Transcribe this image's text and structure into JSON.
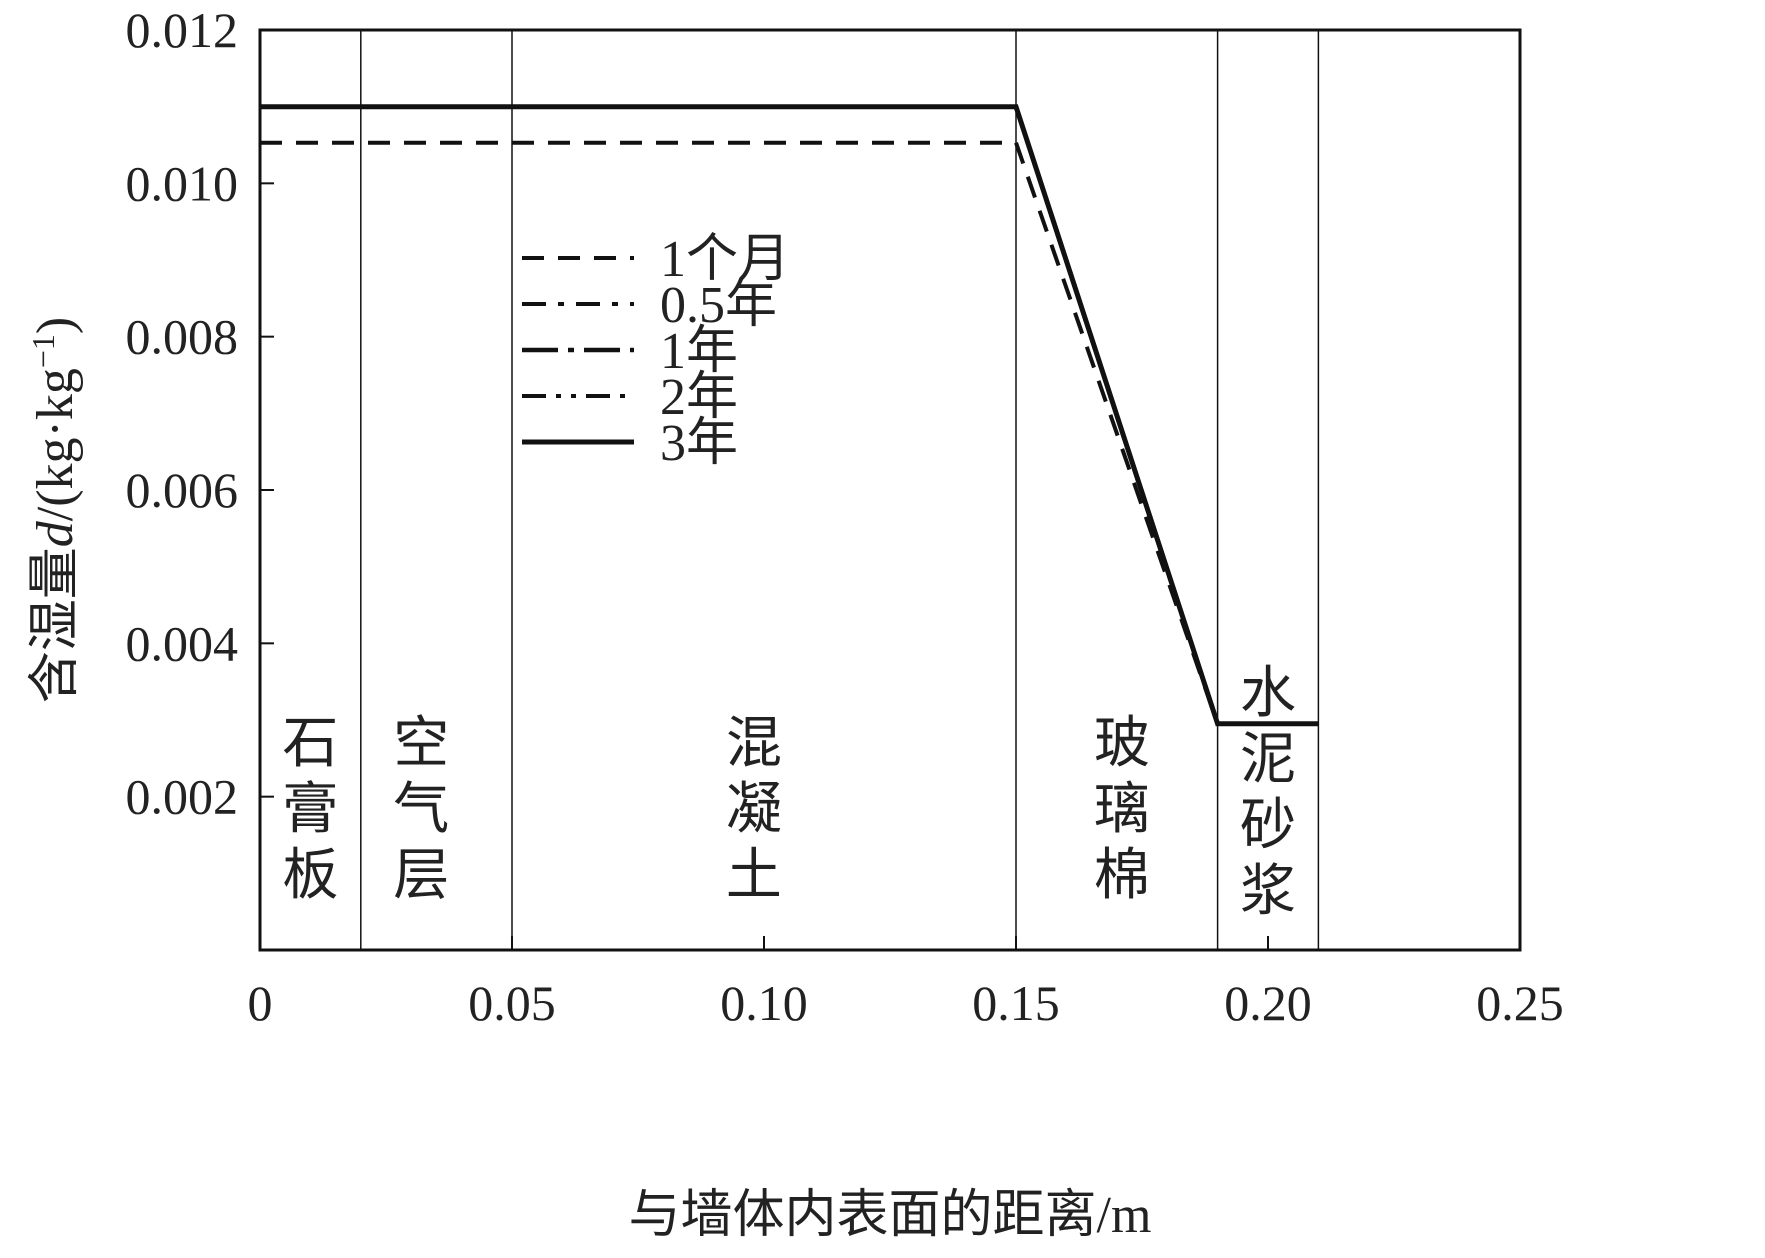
{
  "chart_data": {
    "type": "line",
    "xlabel": "与墙体内表面的距离/m",
    "ylabel_parts": {
      "prefix": "含湿量",
      "var": "d",
      "unit_open": "/(kg·kg",
      "unit_sup": "−1",
      "unit_close": ")"
    },
    "xlim": [
      0,
      0.25
    ],
    "ylim": [
      0,
      0.012
    ],
    "x_ticks": [
      0,
      0.05,
      0.1,
      0.15,
      0.2,
      0.25
    ],
    "x_tick_labels": [
      "0",
      "0.05",
      "0.10",
      "0.15",
      "0.20",
      "0.25"
    ],
    "y_ticks": [
      0.002,
      0.004,
      0.006,
      0.008,
      0.01,
      0.012
    ],
    "y_tick_labels": [
      "0.002",
      "0.004",
      "0.006",
      "0.008",
      "0.010",
      "0.012"
    ],
    "layer_boundaries": [
      0.02,
      0.05,
      0.15,
      0.19,
      0.21
    ],
    "layers": [
      {
        "name": "石膏板",
        "chars": [
          "石",
          "膏",
          "板"
        ],
        "x": 0.01
      },
      {
        "name": "空气层",
        "chars": [
          "空",
          "气",
          "层"
        ],
        "x": 0.032
      },
      {
        "name": "混凝土",
        "chars": [
          "混",
          "凝",
          "土"
        ],
        "x": 0.098
      },
      {
        "name": "玻璃棉",
        "chars": [
          "玻",
          "璃",
          "棉"
        ],
        "x": 0.171
      },
      {
        "name": "水泥砂浆",
        "chars": [
          "水",
          "泥",
          "砂",
          "浆"
        ],
        "x": 0.2
      }
    ],
    "legend_position": "center-left",
    "series": [
      {
        "name": "1个月",
        "style": "dash",
        "x": [
          0,
          0.15,
          0.19,
          0.21
        ],
        "y": [
          0.01053,
          0.01053,
          0.00295,
          0.00295
        ]
      },
      {
        "name": "0.5年",
        "style": "dashdot",
        "x": [
          0,
          0.15,
          0.19,
          0.21
        ],
        "y": [
          0.011,
          0.011,
          0.00295,
          0.00295
        ]
      },
      {
        "name": "1年",
        "style": "longdashdot",
        "x": [
          0,
          0.15,
          0.19,
          0.21
        ],
        "y": [
          0.011,
          0.011,
          0.00295,
          0.00295
        ]
      },
      {
        "name": "2年",
        "style": "dashdotdot",
        "x": [
          0,
          0.15,
          0.19,
          0.21
        ],
        "y": [
          0.011,
          0.011,
          0.00295,
          0.00295
        ]
      },
      {
        "name": "3年",
        "style": "solid",
        "x": [
          0,
          0.15,
          0.19,
          0.21
        ],
        "y": [
          0.011,
          0.011,
          0.00295,
          0.00295
        ]
      }
    ],
    "colors": {
      "line": "#111111",
      "axis": "#111111",
      "text": "#222222"
    }
  }
}
